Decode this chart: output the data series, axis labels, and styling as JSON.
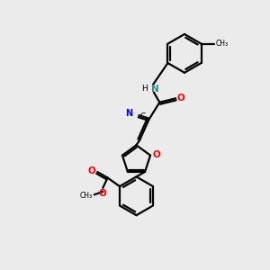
{
  "bg_color": "#ebebeb",
  "bond_color": "#000000",
  "nitrogen_color": "#2e8b8b",
  "oxygen_color": "#ff0000",
  "blue_color": "#0000ff",
  "figsize": [
    3.0,
    3.0
  ],
  "dpi": 100,
  "xlim": [
    0,
    10
  ],
  "ylim": [
    0,
    10
  ]
}
